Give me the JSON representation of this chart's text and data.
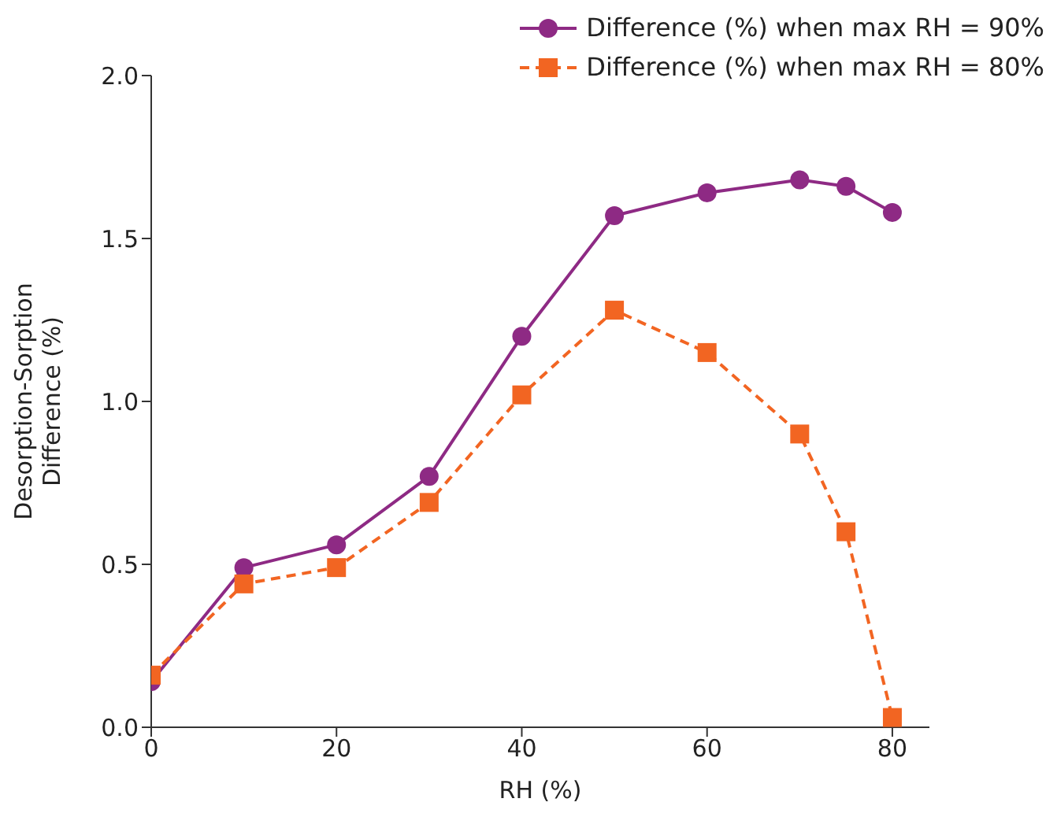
{
  "chart_data": {
    "type": "line",
    "xlabel": "RH (%)",
    "ylabel": "Desorption-Sorption Difference (%)",
    "x": [
      0,
      10,
      20,
      30,
      40,
      50,
      60,
      70,
      75,
      80
    ],
    "series": [
      {
        "name": "Difference (%) when max RH = 90%",
        "color": "#8e2a84",
        "marker": "circle",
        "line_style": "solid",
        "values": [
          0.14,
          0.49,
          0.56,
          0.77,
          1.2,
          1.57,
          1.64,
          1.68,
          1.66,
          1.58
        ]
      },
      {
        "name": "Difference (%) when max RH = 80%",
        "color": "#f26522",
        "marker": "square",
        "line_style": "dashed",
        "values": [
          0.16,
          0.44,
          0.49,
          0.69,
          1.02,
          1.28,
          1.15,
          0.9,
          0.6,
          0.03
        ]
      }
    ],
    "xlim": [
      0,
      84
    ],
    "xticks": [
      0,
      20,
      40,
      60,
      80
    ],
    "ylim": [
      0,
      2
    ],
    "yticks": [
      {
        "value": 0,
        "label": "0.0"
      },
      {
        "value": 0.5,
        "label": "0.5"
      },
      {
        "value": 1,
        "label": "1.0"
      },
      {
        "value": 1.5,
        "label": "1.5"
      },
      {
        "value": 2,
        "label": "2.0"
      }
    ],
    "grid": false,
    "legend": "top right"
  }
}
